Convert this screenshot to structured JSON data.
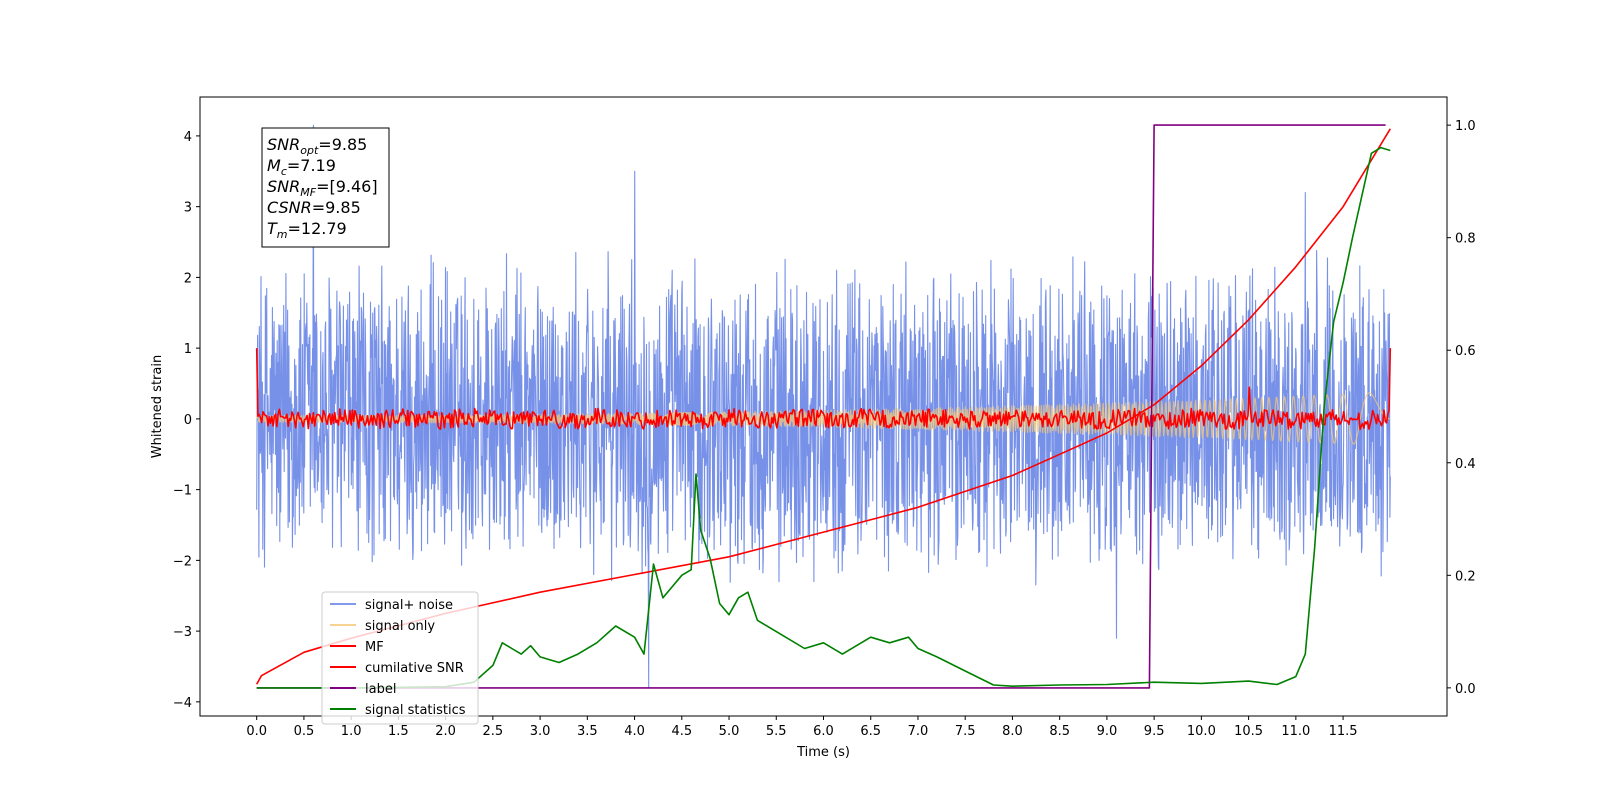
{
  "chart_data": {
    "type": "line",
    "title": "",
    "xlabel": "Time (s)",
    "ylabel": "Whitened strain",
    "xlim": [
      -0.6,
      12.6
    ],
    "ylim": [
      -4.2,
      4.55
    ],
    "y2lim": [
      -0.05,
      1.05
    ],
    "x_ticks": [
      "0.0",
      "0.5",
      "1.0",
      "1.5",
      "2.0",
      "2.5",
      "3.0",
      "3.5",
      "4.0",
      "4.5",
      "5.0",
      "5.5",
      "6.0",
      "6.5",
      "7.0",
      "7.5",
      "8.0",
      "8.5",
      "9.0",
      "9.5",
      "10.0",
      "10.5",
      "11.0",
      "11.5"
    ],
    "y_ticks": [
      "4",
      "3",
      "2",
      "1",
      "0",
      "−1",
      "−2",
      "−3",
      "−4"
    ],
    "y2_ticks": [
      "1.0",
      "0.8",
      "0.6",
      "0.4",
      "0.2",
      "0.0"
    ],
    "grid": false,
    "legend_position": "lower-left",
    "info_box": [
      {
        "base": "SNR",
        "sub": "opt",
        "rest": "=9.85"
      },
      {
        "base": "M",
        "sub": "c",
        "rest": "=7.19"
      },
      {
        "base": "SNR",
        "sub": "MF",
        "rest": "=[9.46]"
      },
      {
        "base": "CSNR",
        "sub": "",
        "rest": "=9.85"
      },
      {
        "base": "T",
        "sub": "m",
        "rest": "=12.79"
      }
    ],
    "series": [
      {
        "name": "signal+ noise",
        "color": "#6b88e6",
        "axis": "left",
        "kind": "noise",
        "x_range": [
          0,
          12
        ],
        "envelope": [
          -2.4,
          2.4
        ],
        "spikes": [
          [
            0.6,
            4.15
          ],
          [
            4.0,
            3.5
          ],
          [
            4.15,
            -3.8
          ],
          [
            9.1,
            -3.1
          ],
          [
            11.1,
            3.2
          ]
        ]
      },
      {
        "name": "signal only",
        "color": "#f5c878",
        "axis": "left",
        "kind": "chirp",
        "x_range": [
          0,
          12
        ],
        "amplitude_start": 0.05,
        "amplitude_end": 0.38
      },
      {
        "name": "MF",
        "color": "#ff0000",
        "axis": "left",
        "kind": "mf",
        "x_range": [
          0,
          12
        ],
        "start_value": 1.0,
        "end_value": 1.0,
        "spike": [
          10.5,
          0.45
        ]
      },
      {
        "name": "cumilative SNR",
        "color": "#ff0000",
        "axis": "left",
        "x": [
          0,
          0.05,
          0.5,
          1,
          2,
          3,
          4,
          5,
          6,
          7,
          8,
          8.5,
          9,
          9.5,
          10,
          10.5,
          11,
          11.5,
          12
        ],
        "y": [
          -3.75,
          -3.63,
          -3.3,
          -3.1,
          -2.75,
          -2.45,
          -2.2,
          -1.95,
          -1.6,
          -1.25,
          -0.8,
          -0.5,
          -0.2,
          0.2,
          0.75,
          1.4,
          2.15,
          3.0,
          4.1
        ]
      },
      {
        "name": "label",
        "color": "#800080",
        "axis": "right",
        "x": [
          0,
          9.45,
          9.5,
          11.95
        ],
        "y": [
          0.0,
          0.0,
          1.0,
          1.0
        ]
      },
      {
        "name": "signal statistics",
        "color": "#008000",
        "axis": "right",
        "x": [
          0,
          1,
          2,
          2.3,
          2.5,
          2.6,
          2.7,
          2.8,
          2.9,
          3.0,
          3.2,
          3.4,
          3.6,
          3.8,
          4.0,
          4.1,
          4.2,
          4.3,
          4.4,
          4.5,
          4.6,
          4.65,
          4.7,
          4.8,
          4.9,
          5.0,
          5.1,
          5.2,
          5.3,
          5.5,
          5.8,
          6.0,
          6.2,
          6.5,
          6.7,
          6.9,
          7.0,
          7.2,
          7.5,
          7.8,
          8.0,
          8.5,
          9.0,
          9.5,
          10.0,
          10.5,
          10.8,
          11.0,
          11.1,
          11.2,
          11.3,
          11.4,
          11.5,
          11.6,
          11.8,
          11.9,
          12.0
        ],
        "y": [
          0.0,
          0.0,
          0.002,
          0.01,
          0.04,
          0.08,
          0.07,
          0.06,
          0.075,
          0.055,
          0.045,
          0.06,
          0.08,
          0.11,
          0.09,
          0.06,
          0.22,
          0.16,
          0.18,
          0.2,
          0.21,
          0.38,
          0.28,
          0.23,
          0.15,
          0.13,
          0.16,
          0.17,
          0.12,
          0.1,
          0.07,
          0.08,
          0.06,
          0.09,
          0.08,
          0.09,
          0.07,
          0.055,
          0.03,
          0.005,
          0.003,
          0.005,
          0.006,
          0.01,
          0.008,
          0.012,
          0.006,
          0.02,
          0.06,
          0.25,
          0.5,
          0.65,
          0.72,
          0.8,
          0.95,
          0.96,
          0.955
        ]
      }
    ]
  }
}
